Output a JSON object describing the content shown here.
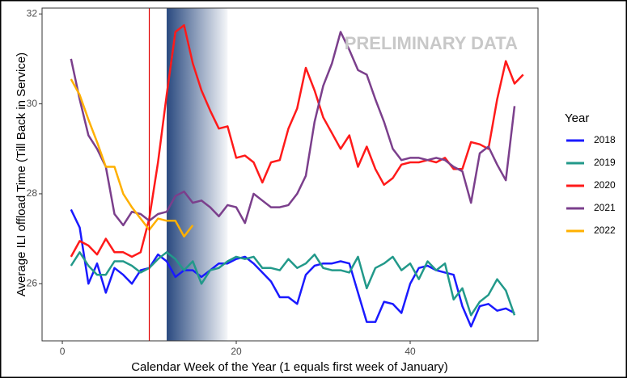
{
  "chart_data": {
    "type": "line",
    "x_label": "Calendar Week of the Year (1 equals first week of January)",
    "y_label": "Average ILI offload Time (Till Back in Service)",
    "annotation": "PRELIMINARY DATA",
    "legend_title": "Year",
    "legend_position": "right",
    "grid": false,
    "marker_week": 10,
    "marker_color": "#e00000",
    "shaded_weeks": [
      12,
      19
    ],
    "shade_color": "#2a4a80",
    "xlim": [
      -2.33,
      54.7
    ],
    "ylim": [
      24.73,
      32.13
    ],
    "xticks": [
      0,
      20,
      40
    ],
    "yticks": [
      26,
      28,
      30,
      32
    ],
    "x": [
      1,
      2,
      3,
      4,
      5,
      6,
      7,
      8,
      9,
      10,
      11,
      12,
      13,
      14,
      15,
      16,
      17,
      18,
      19,
      20,
      21,
      22,
      23,
      24,
      25,
      26,
      27,
      28,
      29,
      30,
      31,
      32,
      33,
      34,
      35,
      36,
      37,
      38,
      39,
      40,
      41,
      42,
      43,
      44,
      45,
      46,
      47,
      48,
      49,
      50,
      51,
      52,
      53
    ],
    "series": [
      {
        "name": "2018",
        "color": "#1a1aff",
        "values": [
          27.65,
          27.25,
          26.0,
          26.45,
          25.8,
          26.35,
          26.2,
          26.0,
          26.3,
          26.35,
          26.65,
          26.5,
          26.15,
          26.3,
          26.3,
          26.15,
          26.3,
          26.45,
          26.45,
          26.55,
          26.6,
          26.45,
          26.25,
          26.05,
          25.7,
          25.7,
          25.55,
          26.2,
          26.4,
          26.45,
          26.45,
          26.5,
          26.45,
          25.8,
          25.15,
          25.15,
          25.6,
          25.55,
          25.35,
          26.0,
          26.35,
          26.4,
          26.3,
          26.25,
          26.2,
          25.5,
          25.05,
          25.5,
          25.55,
          25.4,
          25.45,
          25.35,
          null
        ]
      },
      {
        "name": "2019",
        "color": "#22998a",
        "values": [
          26.4,
          26.7,
          26.4,
          26.2,
          26.2,
          26.5,
          26.5,
          26.4,
          26.25,
          26.35,
          26.55,
          26.7,
          26.55,
          26.3,
          26.5,
          26.0,
          26.3,
          26.35,
          26.5,
          26.6,
          26.55,
          26.6,
          26.35,
          26.35,
          26.3,
          26.55,
          26.35,
          26.45,
          26.65,
          26.35,
          26.3,
          26.3,
          26.25,
          26.6,
          25.9,
          26.35,
          26.45,
          26.6,
          26.3,
          26.45,
          26.1,
          26.5,
          26.3,
          26.45,
          25.65,
          25.9,
          25.3,
          25.6,
          25.75,
          26.1,
          25.85,
          25.3,
          null
        ]
      },
      {
        "name": "2020",
        "color": "#ff1a1a",
        "values": [
          26.6,
          26.95,
          26.85,
          26.65,
          27.0,
          26.7,
          26.7,
          26.6,
          26.7,
          27.45,
          28.7,
          30.2,
          31.6,
          31.75,
          30.9,
          30.3,
          29.85,
          29.45,
          29.5,
          28.8,
          28.85,
          28.7,
          28.25,
          28.7,
          28.75,
          29.45,
          29.9,
          30.8,
          30.3,
          29.7,
          29.35,
          29.0,
          29.3,
          28.6,
          29.05,
          28.55,
          28.2,
          28.35,
          28.65,
          28.7,
          28.7,
          28.75,
          28.7,
          28.8,
          28.55,
          28.55,
          29.15,
          29.1,
          29.0,
          30.1,
          30.95,
          30.45,
          30.65
        ]
      },
      {
        "name": "2021",
        "color": "#7b3f8c",
        "values": [
          31.0,
          30.1,
          29.3,
          29.0,
          28.6,
          27.55,
          27.3,
          27.6,
          27.55,
          27.4,
          27.55,
          27.6,
          27.95,
          28.05,
          27.8,
          27.85,
          27.7,
          27.5,
          27.75,
          27.7,
          27.35,
          28.0,
          27.85,
          27.7,
          27.7,
          27.75,
          28.0,
          28.4,
          29.6,
          30.4,
          30.9,
          31.6,
          31.2,
          30.75,
          30.65,
          30.1,
          29.6,
          29.0,
          28.75,
          28.8,
          28.8,
          28.75,
          28.8,
          28.75,
          28.6,
          28.5,
          27.8,
          28.9,
          29.05,
          28.65,
          28.3,
          29.95,
          null
        ]
      },
      {
        "name": "2022",
        "color": "#ffb000",
        "values": [
          30.55,
          30.2,
          29.65,
          29.15,
          28.6,
          28.6,
          28.0,
          27.7,
          27.45,
          27.2,
          27.45,
          27.4,
          27.4,
          27.05,
          27.3,
          null,
          null,
          null,
          null,
          null,
          null,
          null,
          null,
          null,
          null,
          null,
          null,
          null,
          null,
          null,
          null,
          null,
          null,
          null,
          null,
          null,
          null,
          null,
          null,
          null,
          null,
          null,
          null,
          null,
          null,
          null,
          null,
          null,
          null,
          null,
          null,
          null,
          null
        ]
      }
    ]
  }
}
